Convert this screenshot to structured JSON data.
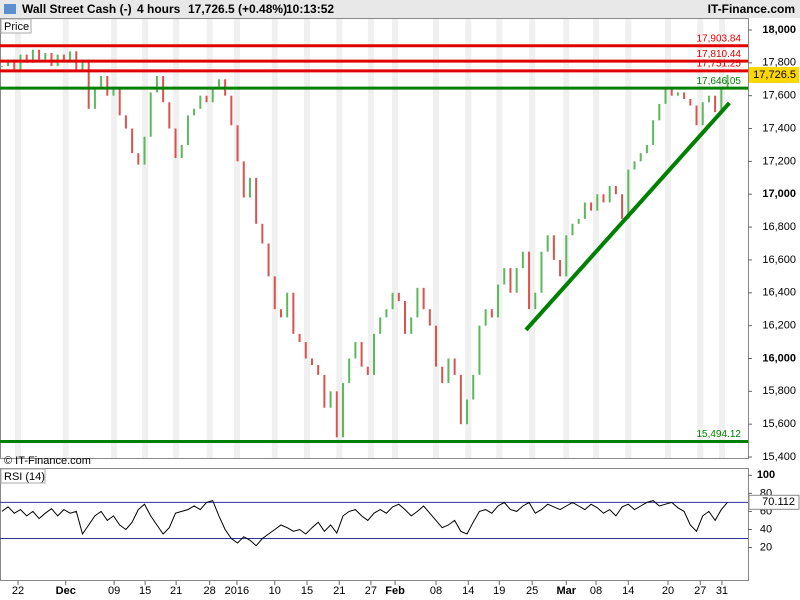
{
  "header": {
    "instrument": "Wall Street Cash (-)",
    "timeframe": "4 hours",
    "quote": "17,726.5 (+0.48%)",
    "time": "10:13:52",
    "brand": "IT-Finance.com"
  },
  "chart_data": [
    {
      "type": "price",
      "panel_label": "Price",
      "watermark": "© IT-Finance.com",
      "xlim": [
        -0.3,
        120.3
      ],
      "xticks": [
        {
          "value": 2.6,
          "label": "22"
        },
        {
          "value": 10.3,
          "label": "Dec"
        },
        {
          "value": 18.1,
          "label": "09"
        },
        {
          "value": 23.1,
          "label": "15"
        },
        {
          "value": 28.1,
          "label": "21"
        },
        {
          "value": 33.5,
          "label": "28"
        },
        {
          "value": 37.9,
          "label": "2016"
        },
        {
          "value": 44,
          "label": "10"
        },
        {
          "value": 49.2,
          "label": "15"
        },
        {
          "value": 54.4,
          "label": "21"
        },
        {
          "value": 59.5,
          "label": "27"
        },
        {
          "value": 63.4,
          "label": "Feb"
        },
        {
          "value": 70,
          "label": "08"
        },
        {
          "value": 75.2,
          "label": "14"
        },
        {
          "value": 80.2,
          "label": "19"
        },
        {
          "value": 85.5,
          "label": "25"
        },
        {
          "value": 91,
          "label": "Mar"
        },
        {
          "value": 95.8,
          "label": "08"
        },
        {
          "value": 101,
          "label": "14"
        },
        {
          "value": 107.4,
          "label": "20"
        },
        {
          "value": 112.6,
          "label": "27"
        },
        {
          "value": 116.1,
          "label": "31"
        }
      ],
      "ylim": [
        15394,
        18073
      ],
      "yticks": [
        {
          "value": 15400,
          "label": "15,400"
        },
        {
          "value": 15600,
          "label": "15,600"
        },
        {
          "value": 15800,
          "label": "15,800"
        },
        {
          "value": 16000,
          "label": "16,000"
        },
        {
          "value": 16200,
          "label": "16,200"
        },
        {
          "value": 16400,
          "label": "16,400"
        },
        {
          "value": 16600,
          "label": "16,600"
        },
        {
          "value": 16800,
          "label": "16,800"
        },
        {
          "value": 17000,
          "label": "17,000"
        },
        {
          "value": 17200,
          "label": "17,200"
        },
        {
          "value": 17400,
          "label": "17,400"
        },
        {
          "value": 17600,
          "label": "17,600"
        },
        {
          "value": 17800,
          "label": "17,800"
        },
        {
          "value": 18000,
          "label": "18,000"
        }
      ],
      "up_color": "#5cb85c",
      "down_color": "#d9534f",
      "series": [
        {
          "name": "Wall Street Cash",
          "values": [
            17780,
            17820,
            17760,
            17850,
            17800,
            17880,
            17820,
            17860,
            17780,
            17850,
            17810,
            17870,
            17760,
            17820,
            17520,
            17650,
            17720,
            17600,
            17640,
            17480,
            17400,
            17250,
            17180,
            17350,
            17620,
            17720,
            17560,
            17400,
            17220,
            17300,
            17480,
            17520,
            17600,
            17560,
            17640,
            17700,
            17600,
            17420,
            17200,
            16980,
            17100,
            16820,
            16700,
            16500,
            16300,
            16250,
            16400,
            16150,
            16100,
            16000,
            15960,
            15900,
            15700,
            15800,
            15520,
            15850,
            16000,
            16100,
            15950,
            15900,
            16150,
            16250,
            16300,
            16400,
            16350,
            16150,
            16250,
            16430,
            16300,
            16200,
            15950,
            15850,
            16000,
            15900,
            15600,
            15750,
            15900,
            16200,
            16300,
            16250,
            16450,
            16550,
            16400,
            16550,
            16650,
            16300,
            16400,
            16650,
            16750,
            16600,
            16500,
            16750,
            16820,
            16850,
            16950,
            16900,
            17000,
            16950,
            17050,
            17000,
            16850,
            17150,
            17200,
            17250,
            17300,
            17450,
            17550,
            17650,
            17600,
            17620,
            17580,
            17540,
            17420,
            17560,
            17600,
            17500,
            17650,
            17726.5
          ]
        }
      ],
      "levels": [
        {
          "value": 17903.84,
          "label": "17,903.84",
          "color": "#e00000"
        },
        {
          "value": 17810.44,
          "label": "17,810.44",
          "color": "#e00000"
        },
        {
          "value": 17751.25,
          "label": "17,751.25",
          "color": "#e00000"
        },
        {
          "value": 17646.05,
          "label": "17,646.05",
          "color": "#008000"
        },
        {
          "value": 15494.12,
          "label": "15,494.12",
          "color": "#008000"
        }
      ],
      "last": {
        "value": 17726.5,
        "label": "17,726.5"
      },
      "trendline": {
        "x": [
          84.5,
          117.3
        ],
        "y": [
          16174,
          17556
        ],
        "color": "#008000"
      }
    },
    {
      "type": "rsi",
      "panel_label": "RSI (14)",
      "xlim": [
        -0.3,
        120.3
      ],
      "ylim": [
        -16,
        107
      ],
      "yticks": [
        20,
        40,
        60,
        80,
        100
      ],
      "levels": [
        30,
        70
      ],
      "series": [
        {
          "name": "RSI",
          "color": "#000000",
          "values": [
            60,
            65,
            58,
            62,
            55,
            60,
            52,
            58,
            63,
            55,
            62,
            58,
            60,
            35,
            45,
            55,
            60,
            50,
            55,
            45,
            40,
            48,
            62,
            68,
            55,
            45,
            35,
            42,
            58,
            60,
            62,
            66,
            62,
            70,
            72,
            55,
            40,
            30,
            25,
            32,
            28,
            22,
            30,
            35,
            40,
            45,
            42,
            38,
            40,
            35,
            42,
            48,
            38,
            45,
            36,
            55,
            60,
            62,
            55,
            50,
            58,
            62,
            58,
            65,
            68,
            62,
            55,
            60,
            66,
            58,
            50,
            42,
            45,
            50,
            38,
            35,
            48,
            60,
            62,
            58,
            66,
            70,
            62,
            60,
            66,
            70,
            58,
            62,
            68,
            65,
            62,
            66,
            70,
            66,
            62,
            68,
            64,
            58,
            62,
            55,
            65,
            68,
            62,
            66,
            70,
            72,
            66,
            68,
            70,
            64,
            60,
            45,
            38,
            55,
            60,
            50,
            62,
            70.112
          ]
        }
      ],
      "last": 70.112
    }
  ]
}
